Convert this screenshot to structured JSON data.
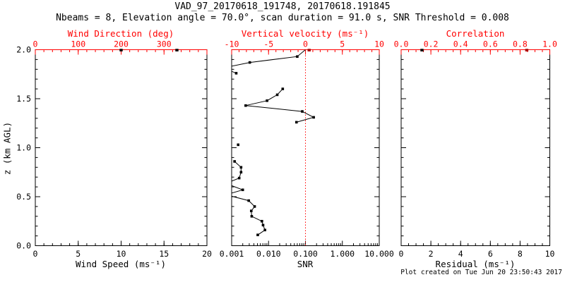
{
  "title": "VAD_97_20170618_191748, 20170618.191845",
  "subtitle": "Nbeams = 8, Elevation angle = 70.0°, scan duration = 91.0 s, SNR Threshold = 0.008",
  "credit": "Plot created on Tue Jun 20 23:50:43 2017",
  "colors": {
    "foreground": "#000000",
    "secondary_axis": "#ff0000",
    "data_mark_red": "#aa0000",
    "background": "#ffffff"
  },
  "y_axis": {
    "label": "z (km AGL)",
    "lim": [
      0,
      2
    ],
    "major_ticks": [
      0,
      0.5,
      1,
      1.5,
      2
    ],
    "tick_labels": [
      "0.0",
      "0.5",
      "1.0",
      "1.5",
      "2.0"
    ],
    "minor_step": 0.1
  },
  "chart_data": [
    {
      "id": "wind",
      "type": "line",
      "bottom_axis": {
        "label": "Wind Speed (ms⁻¹)",
        "scale": "linear",
        "lim": [
          0,
          20
        ],
        "major_ticks": [
          0,
          5,
          10,
          15,
          20
        ],
        "tick_labels": [
          "0",
          "5",
          "10",
          "15",
          "20"
        ],
        "minor_step": 1
      },
      "top_axis": {
        "label": "Wind Direction (deg)",
        "scale": "linear",
        "lim": [
          0,
          400
        ],
        "major_ticks": [
          0,
          100,
          200,
          300,
          400
        ],
        "tick_labels": [
          "0",
          "100",
          "200",
          "300",
          ""
        ],
        "minor_step": 20
      },
      "series": [],
      "top_edge_marks": [
        {
          "value": 200,
          "axis": "top",
          "color": "#000000"
        },
        {
          "value": 330,
          "axis": "top",
          "color": "#000000"
        }
      ]
    },
    {
      "id": "snr",
      "type": "line",
      "bottom_axis": {
        "label": "SNR",
        "scale": "log",
        "lim": [
          0.001,
          10
        ],
        "major_ticks": [
          0.001,
          0.01,
          0.1,
          1,
          10
        ],
        "tick_labels": [
          "0.001",
          "0.010",
          "0.100",
          "1.000",
          "10.000"
        ]
      },
      "top_axis": {
        "label": "Vertical velocity (ms⁻¹)",
        "scale": "linear",
        "lim": [
          -10,
          10
        ],
        "major_ticks": [
          -10,
          -5,
          0,
          5,
          10
        ],
        "tick_labels": [
          "-10",
          "-5",
          "0",
          "5",
          "10"
        ],
        "minor_step": 1
      },
      "refline": {
        "value": 0.1,
        "axis": "bottom",
        "style": "dotted",
        "color": "#ff0000"
      },
      "series": [
        {
          "name": "snr-profile",
          "color": "#000000",
          "marker": "square",
          "segments": [
            [
              [
                0.1,
                2.0,
                0
              ],
              [
                0.06,
                1.93,
                1
              ],
              [
                0.0031,
                1.87,
                1
              ],
              [
                0.0006,
                1.815,
                0
              ],
              [
                0.00133,
                1.76,
                1
              ]
            ],
            [
              [
                0.0242,
                1.6,
                1
              ],
              [
                0.0172,
                1.54,
                1
              ],
              [
                0.0091,
                1.48,
                1
              ],
              [
                0.0024,
                1.43,
                1
              ],
              [
                0.082,
                1.37,
                1
              ],
              [
                0.167,
                1.31,
                1
              ],
              [
                0.057,
                1.26,
                1
              ]
            ],
            [
              [
                0.0015,
                1.03,
                1
              ]
            ],
            [
              [
                0.0012,
                0.86,
                1
              ],
              [
                0.0018,
                0.8,
                1
              ],
              [
                0.0018,
                0.75,
                1
              ],
              [
                0.0016,
                0.69,
                1
              ],
              [
                0.0007,
                0.635,
                0
              ],
              [
                0.002,
                0.57,
                1
              ],
              [
                0.0007,
                0.52,
                0
              ],
              [
                0.0029,
                0.46,
                1
              ],
              [
                0.0042,
                0.4,
                1
              ],
              [
                0.0034,
                0.355,
                1
              ],
              [
                0.0035,
                0.3,
                1
              ],
              [
                0.0066,
                0.25,
                1
              ],
              [
                0.0071,
                0.21,
                1
              ],
              [
                0.008,
                0.16,
                1
              ],
              [
                0.0051,
                0.11,
                1
              ]
            ]
          ]
        }
      ],
      "top_edge_marks": [
        {
          "value": 0.5,
          "axis": "top",
          "color": "#aa0000"
        }
      ]
    },
    {
      "id": "res",
      "type": "line",
      "bottom_axis": {
        "label": "Residual (ms⁻¹)",
        "scale": "linear",
        "lim": [
          0,
          10
        ],
        "major_ticks": [
          0,
          2,
          4,
          6,
          8,
          10
        ],
        "tick_labels": [
          "0",
          "2",
          "4",
          "6",
          "8",
          "10"
        ],
        "minor_step": 0.5
      },
      "top_axis": {
        "label": "Correlation",
        "scale": "linear",
        "lim": [
          0,
          1
        ],
        "major_ticks": [
          0,
          0.2,
          0.4,
          0.6,
          0.8,
          1
        ],
        "tick_labels": [
          "0.0",
          "0.2",
          "0.4",
          "0.6",
          "0.8",
          "1.0"
        ],
        "minor_step": 0.05
      },
      "series": [],
      "top_edge_marks": [
        {
          "value": 0.14,
          "axis": "top",
          "color": "#000000"
        },
        {
          "value": 0.845,
          "axis": "top",
          "color": "#aa0000"
        }
      ]
    }
  ]
}
